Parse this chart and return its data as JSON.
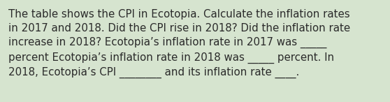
{
  "text": "The table shows the CPI in Ecotopia. Calculate the inflation rates\nin 2017 and 2018. Did the CPI rise in 2018? Did the inflation rate\nincrease in 2018? Ecotopia’s inflation rate in 2017 was _____\npercent Ecotopia’s inflation rate in 2018 was _____ percent. In\n2018, Ecotopia’s CPI ________ and its inflation rate ____.",
  "background_color": "#d6e4cf",
  "text_color": "#2a2a2a",
  "font_size": 10.8,
  "fig_width": 5.58,
  "fig_height": 1.46
}
